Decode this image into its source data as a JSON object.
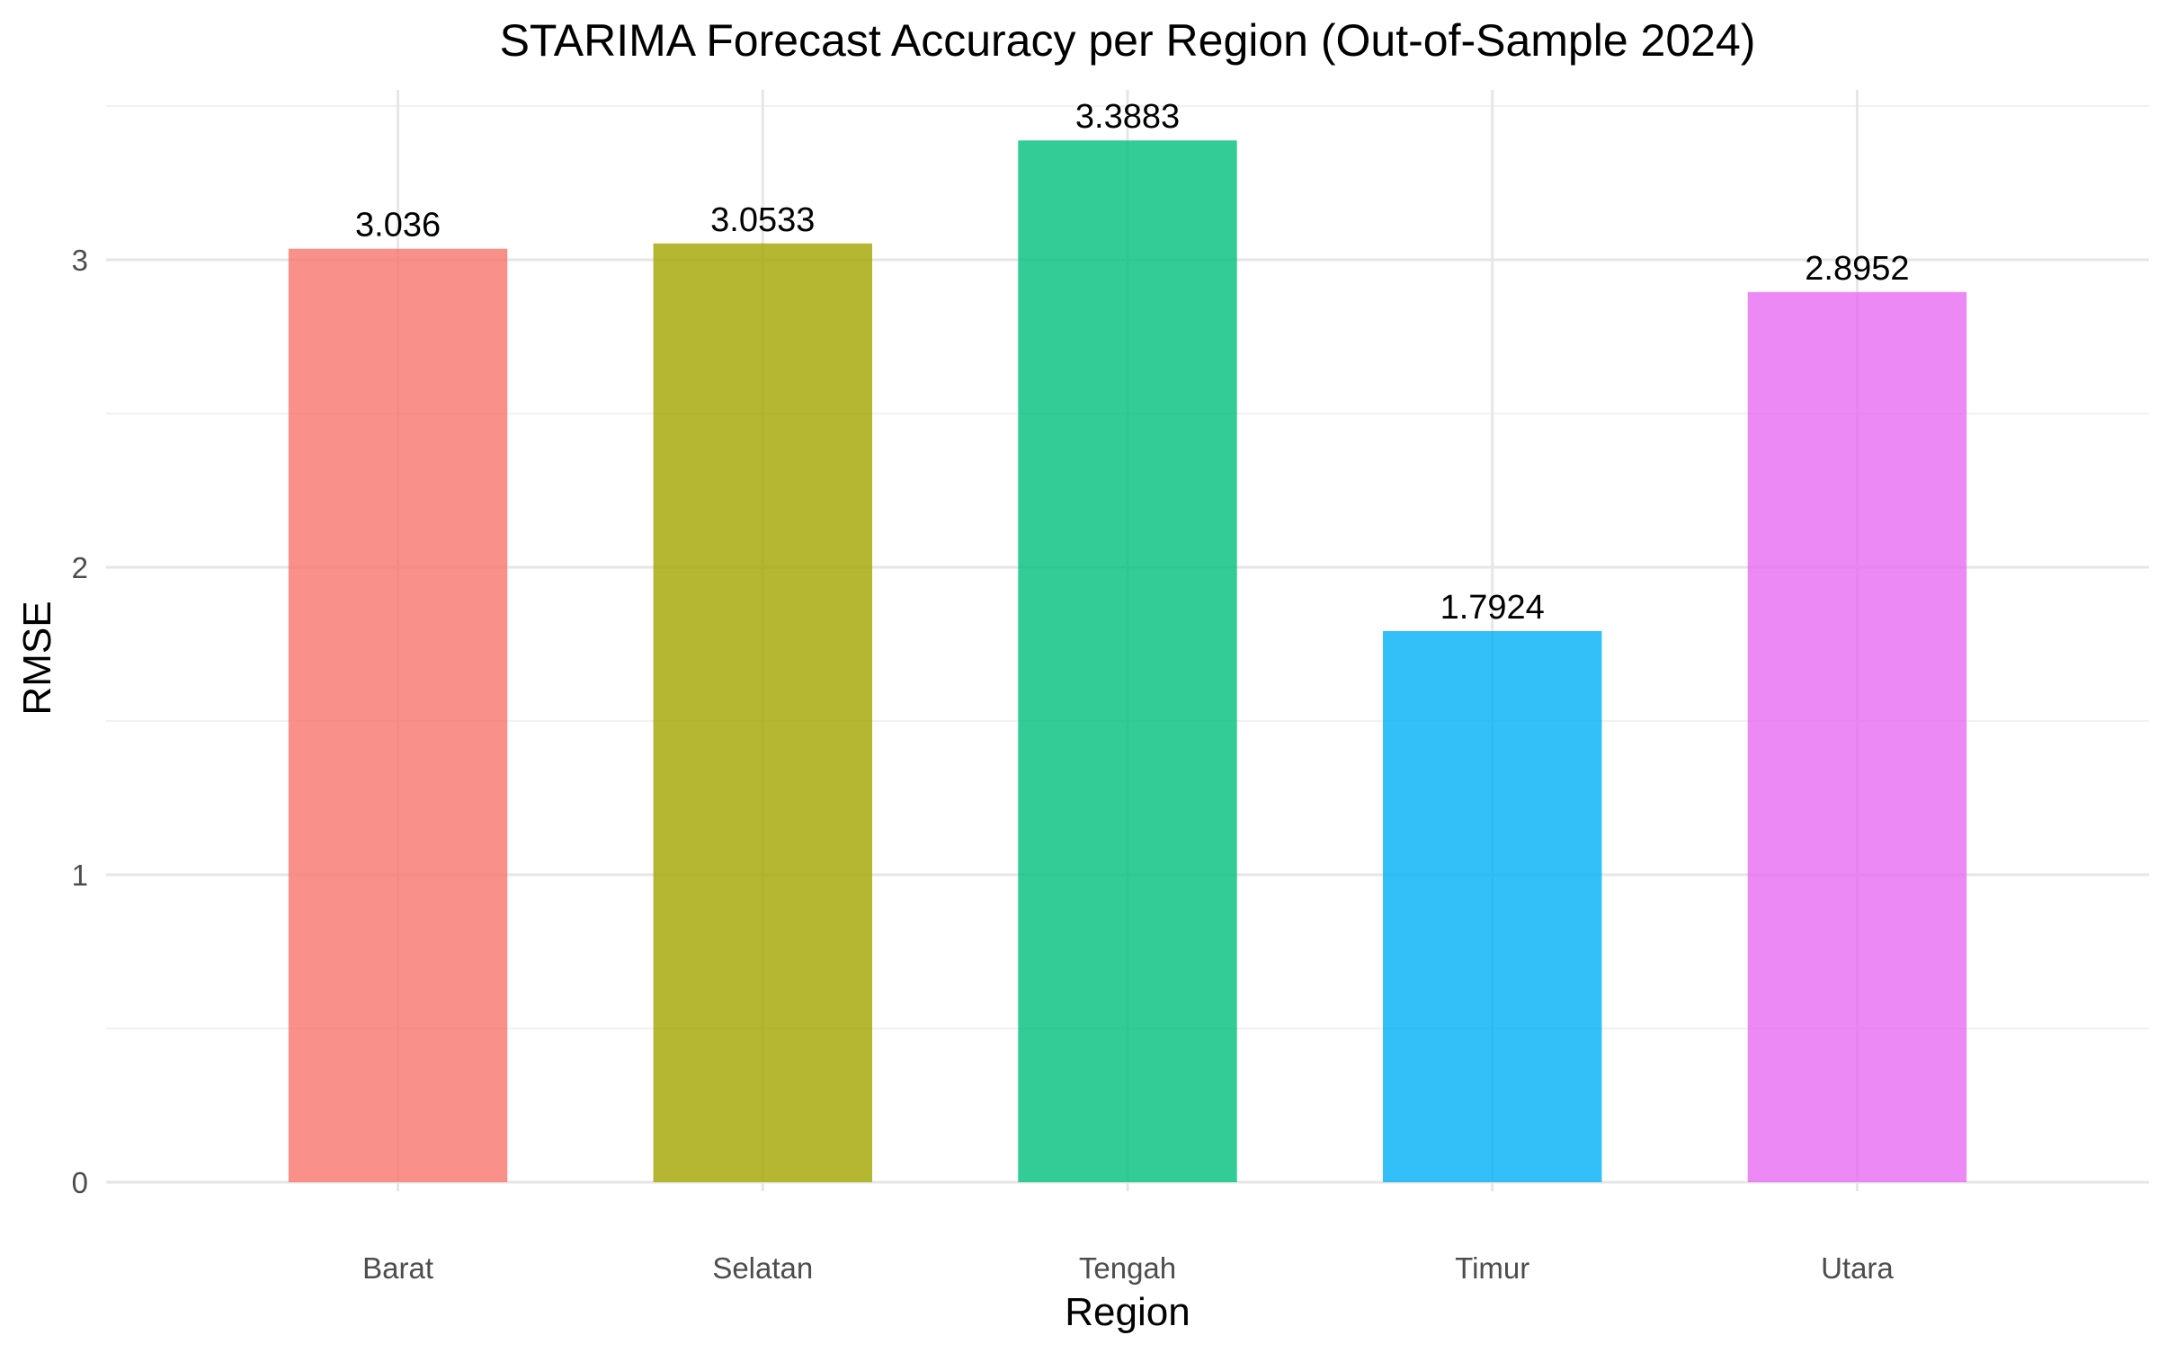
{
  "chart_data": {
    "type": "bar",
    "title": "STARIMA Forecast Accuracy per Region (Out-of-Sample 2024)",
    "xlabel": "Region",
    "ylabel": "RMSE",
    "categories": [
      "Barat",
      "Selatan",
      "Tengah",
      "Timur",
      "Utara"
    ],
    "values": [
      3.036,
      3.0533,
      3.3883,
      1.7924,
      2.8952
    ],
    "data_labels": [
      "3.036",
      "3.0533",
      "3.3883",
      "1.7924",
      "2.8952"
    ],
    "colors": [
      "#F8766D",
      "#A3A500",
      "#00BF7D",
      "#00B0F6",
      "#E76BF3"
    ],
    "ylim": [
      0,
      3.5
    ],
    "yticks": [
      0,
      1,
      2,
      3
    ],
    "ytick_labels": [
      "0",
      "1",
      "2",
      "3"
    ],
    "grid": true,
    "legend": "none"
  }
}
